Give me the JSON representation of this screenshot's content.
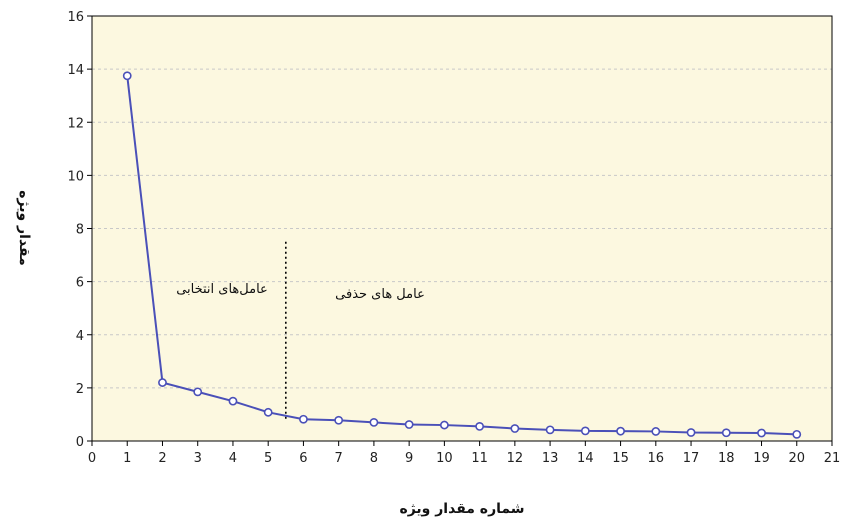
{
  "chart_data": {
    "type": "line",
    "title": "",
    "xlabel": "شماره مقدار ویژه",
    "ylabel": "مقدار ویژه",
    "xlim": [
      0,
      21
    ],
    "ylim": [
      0,
      16
    ],
    "x_ticks": [
      0,
      1,
      2,
      3,
      4,
      5,
      6,
      7,
      8,
      9,
      10,
      11,
      12,
      13,
      14,
      15,
      16,
      17,
      18,
      19,
      20,
      21
    ],
    "y_ticks": [
      0,
      2,
      4,
      6,
      8,
      10,
      12,
      14,
      16
    ],
    "grid": "horizontal-dashed",
    "colors": {
      "plot_background": "#fcf8e0",
      "line": "#4a50b8",
      "marker_fill": "#ffffff"
    },
    "series": [
      {
        "x": [
          1,
          2,
          3,
          4,
          5,
          6,
          7,
          8,
          9,
          10,
          11,
          12,
          13,
          14,
          15,
          16,
          17,
          18,
          19,
          20
        ],
        "values": [
          13.75,
          2.2,
          1.85,
          1.5,
          1.08,
          0.82,
          0.78,
          0.7,
          0.62,
          0.6,
          0.55,
          0.47,
          0.42,
          0.38,
          0.37,
          0.36,
          0.32,
          0.31,
          0.3,
          0.25
        ]
      }
    ],
    "cutoff_x": 5.5,
    "cutoff_top_y": 7.5,
    "annotations": {
      "left": "عامل‌های انتخابی",
      "right": "عامل های حذفی"
    }
  }
}
